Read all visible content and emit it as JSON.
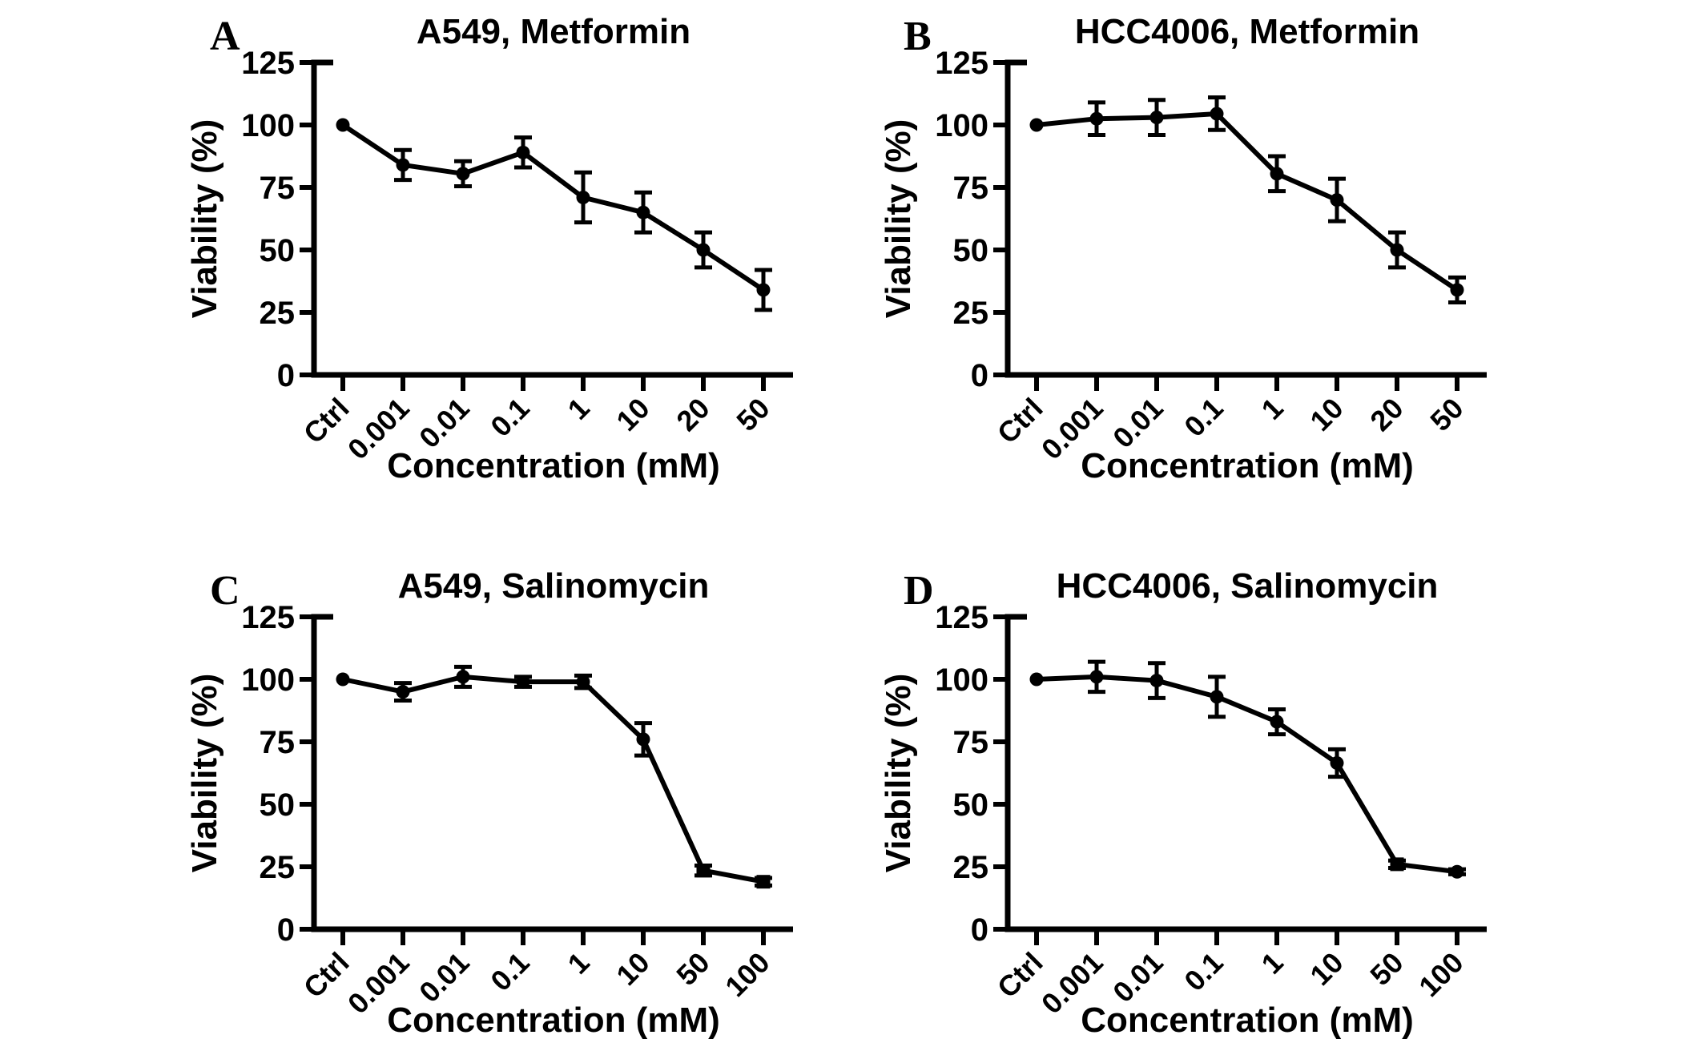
{
  "figure": {
    "background": "#ffffff",
    "ink": "#000000"
  },
  "chart_data": [
    {
      "panel_letter": "A",
      "title": "A549, Metformin",
      "type": "line",
      "xlabel": "Concentration (mM)",
      "ylabel": "Viability (%)",
      "ylim": [
        0,
        125
      ],
      "yticks": [
        0,
        25,
        50,
        75,
        100,
        125
      ],
      "grid": false,
      "legend": "none",
      "color": "#000000",
      "categories": [
        "Ctrl",
        "0.001",
        "0.01",
        "0.1",
        "1",
        "10",
        "20",
        "50"
      ],
      "values": [
        100,
        84,
        80.5,
        89,
        71,
        65,
        50,
        34
      ],
      "errors": [
        0,
        6,
        5,
        6,
        10,
        8,
        7,
        8
      ],
      "markers": [
        "circle",
        "circle",
        "circle",
        "circle",
        "circle",
        "circle",
        "circle",
        "circle"
      ]
    },
    {
      "panel_letter": "B",
      "title": "HCC4006, Metformin",
      "type": "line",
      "xlabel": "Concentration (mM)",
      "ylabel": "Viability (%)",
      "ylim": [
        0,
        125
      ],
      "yticks": [
        0,
        25,
        50,
        75,
        100,
        125
      ],
      "grid": false,
      "legend": "none",
      "color": "#000000",
      "categories": [
        "Ctrl",
        "0.001",
        "0.01",
        "0.1",
        "1",
        "10",
        "20",
        "50"
      ],
      "values": [
        100,
        102.5,
        103,
        104.5,
        80.5,
        70,
        50,
        34
      ],
      "errors": [
        0,
        6.5,
        7,
        6.5,
        7,
        8.5,
        7,
        5
      ],
      "markers": [
        "circle",
        "circle",
        "circle",
        "circle",
        "circle",
        "circle",
        "circle",
        "circle"
      ]
    },
    {
      "panel_letter": "C",
      "title": "A549, Salinomycin",
      "type": "line",
      "xlabel": "Concentration (mM)",
      "ylabel": "Viability (%)",
      "ylim": [
        0,
        125
      ],
      "yticks": [
        0,
        25,
        50,
        75,
        100,
        125
      ],
      "grid": false,
      "legend": "none",
      "color": "#000000",
      "categories": [
        "Ctrl",
        "0.001",
        "0.01",
        "0.1",
        "1",
        "10",
        "50",
        "100"
      ],
      "values": [
        100,
        95,
        101,
        99,
        99,
        76,
        23.5,
        19
      ],
      "errors": [
        0,
        3.5,
        4,
        2,
        2.5,
        6.5,
        2,
        1.5
      ],
      "markers": [
        "circle",
        "circle",
        "circle",
        "circle",
        "circle",
        "circle",
        "square",
        "square"
      ]
    },
    {
      "panel_letter": "D",
      "title": "HCC4006, Salinomycin",
      "type": "line",
      "xlabel": "Concentration (mM)",
      "ylabel": "Viability (%)",
      "ylim": [
        0,
        125
      ],
      "yticks": [
        0,
        25,
        50,
        75,
        100,
        125
      ],
      "grid": false,
      "legend": "none",
      "color": "#000000",
      "categories": [
        "Ctrl",
        "0.001",
        "0.01",
        "0.1",
        "1",
        "10",
        "50",
        "100"
      ],
      "values": [
        100,
        101,
        99.5,
        93,
        83,
        66.5,
        26,
        23
      ],
      "errors": [
        0,
        6,
        7,
        8,
        5,
        5.5,
        1.5,
        1
      ],
      "markers": [
        "circle",
        "circle",
        "circle",
        "circle",
        "circle",
        "circle",
        "square",
        "circle"
      ]
    }
  ]
}
